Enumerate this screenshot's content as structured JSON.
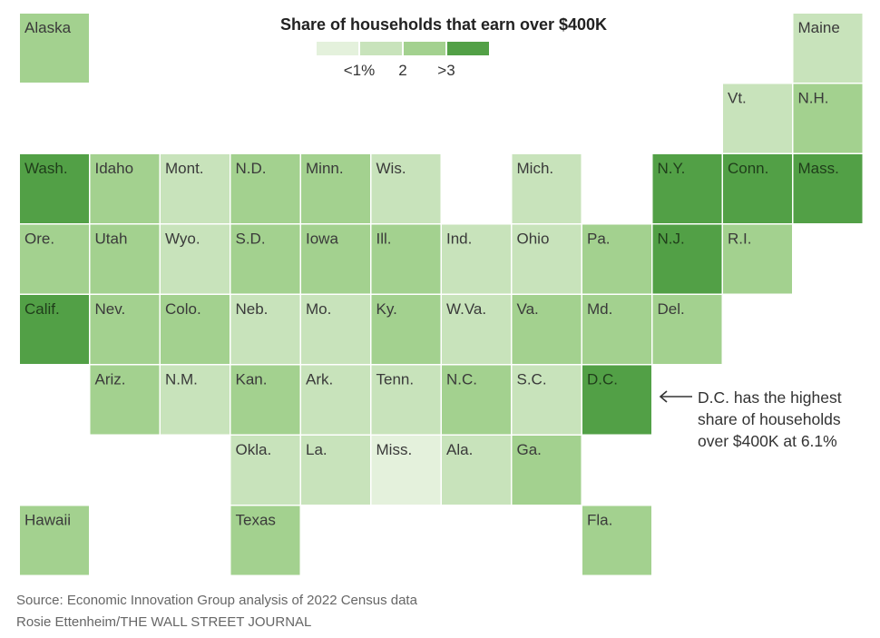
{
  "chart_data": {
    "type": "tile-grid-map",
    "title": "Share of households that earn over $400K",
    "legend": {
      "bins": [
        {
          "color": "#e4f1dc"
        },
        {
          "color": "#c8e3bb"
        },
        {
          "color": "#a3d18f"
        },
        {
          "color": "#52a046"
        }
      ],
      "ticks": [
        "<1%",
        "2",
        ">3"
      ]
    },
    "tiles": [
      {
        "state": "Alaska",
        "col": 0,
        "row": 0,
        "bin": 2
      },
      {
        "state": "Maine",
        "col": 11,
        "row": 0,
        "bin": 1
      },
      {
        "state": "Vt.",
        "col": 10,
        "row": 1,
        "bin": 1
      },
      {
        "state": "N.H.",
        "col": 11,
        "row": 1,
        "bin": 2
      },
      {
        "state": "Wash.",
        "col": 0,
        "row": 2,
        "bin": 3
      },
      {
        "state": "Idaho",
        "col": 1,
        "row": 2,
        "bin": 2
      },
      {
        "state": "Mont.",
        "col": 2,
        "row": 2,
        "bin": 1
      },
      {
        "state": "N.D.",
        "col": 3,
        "row": 2,
        "bin": 2
      },
      {
        "state": "Minn.",
        "col": 4,
        "row": 2,
        "bin": 2
      },
      {
        "state": "Wis.",
        "col": 5,
        "row": 2,
        "bin": 1
      },
      {
        "state": "Mich.",
        "col": 7,
        "row": 2,
        "bin": 1
      },
      {
        "state": "N.Y.",
        "col": 9,
        "row": 2,
        "bin": 3
      },
      {
        "state": "Conn.",
        "col": 10,
        "row": 2,
        "bin": 3
      },
      {
        "state": "Mass.",
        "col": 11,
        "row": 2,
        "bin": 3
      },
      {
        "state": "Ore.",
        "col": 0,
        "row": 3,
        "bin": 2
      },
      {
        "state": "Utah",
        "col": 1,
        "row": 3,
        "bin": 2
      },
      {
        "state": "Wyo.",
        "col": 2,
        "row": 3,
        "bin": 1
      },
      {
        "state": "S.D.",
        "col": 3,
        "row": 3,
        "bin": 2
      },
      {
        "state": "Iowa",
        "col": 4,
        "row": 3,
        "bin": 2
      },
      {
        "state": "Ill.",
        "col": 5,
        "row": 3,
        "bin": 2
      },
      {
        "state": "Ind.",
        "col": 6,
        "row": 3,
        "bin": 1
      },
      {
        "state": "Ohio",
        "col": 7,
        "row": 3,
        "bin": 1
      },
      {
        "state": "Pa.",
        "col": 8,
        "row": 3,
        "bin": 2
      },
      {
        "state": "N.J.",
        "col": 9,
        "row": 3,
        "bin": 3
      },
      {
        "state": "R.I.",
        "col": 10,
        "row": 3,
        "bin": 2
      },
      {
        "state": "Calif.",
        "col": 0,
        "row": 4,
        "bin": 3
      },
      {
        "state": "Nev.",
        "col": 1,
        "row": 4,
        "bin": 2
      },
      {
        "state": "Colo.",
        "col": 2,
        "row": 4,
        "bin": 2
      },
      {
        "state": "Neb.",
        "col": 3,
        "row": 4,
        "bin": 1
      },
      {
        "state": "Mo.",
        "col": 4,
        "row": 4,
        "bin": 1
      },
      {
        "state": "Ky.",
        "col": 5,
        "row": 4,
        "bin": 2
      },
      {
        "state": "W.Va.",
        "col": 6,
        "row": 4,
        "bin": 1
      },
      {
        "state": "Va.",
        "col": 7,
        "row": 4,
        "bin": 2
      },
      {
        "state": "Md.",
        "col": 8,
        "row": 4,
        "bin": 2
      },
      {
        "state": "Del.",
        "col": 9,
        "row": 4,
        "bin": 2
      },
      {
        "state": "Ariz.",
        "col": 1,
        "row": 5,
        "bin": 2
      },
      {
        "state": "N.M.",
        "col": 2,
        "row": 5,
        "bin": 1
      },
      {
        "state": "Kan.",
        "col": 3,
        "row": 5,
        "bin": 2
      },
      {
        "state": "Ark.",
        "col": 4,
        "row": 5,
        "bin": 1
      },
      {
        "state": "Tenn.",
        "col": 5,
        "row": 5,
        "bin": 1
      },
      {
        "state": "N.C.",
        "col": 6,
        "row": 5,
        "bin": 2
      },
      {
        "state": "S.C.",
        "col": 7,
        "row": 5,
        "bin": 1
      },
      {
        "state": "D.C.",
        "col": 8,
        "row": 5,
        "bin": 3
      },
      {
        "state": "Okla.",
        "col": 3,
        "row": 6,
        "bin": 1
      },
      {
        "state": "La.",
        "col": 4,
        "row": 6,
        "bin": 1
      },
      {
        "state": "Miss.",
        "col": 5,
        "row": 6,
        "bin": 0
      },
      {
        "state": "Ala.",
        "col": 6,
        "row": 6,
        "bin": 1
      },
      {
        "state": "Ga.",
        "col": 7,
        "row": 6,
        "bin": 2
      },
      {
        "state": "Hawaii",
        "col": 0,
        "row": 7,
        "bin": 2
      },
      {
        "state": "Texas",
        "col": 3,
        "row": 7,
        "bin": 2
      },
      {
        "state": "Fla.",
        "col": 8,
        "row": 7,
        "bin": 2
      }
    ],
    "annotation": {
      "lines": [
        "D.C. has the highest",
        "share of households",
        "over $400K at 6.1%"
      ]
    }
  },
  "footer": {
    "source": "Source: Economic Innovation Group analysis of 2022 Census data",
    "credit": "Rosie Ettenheim/THE WALL STREET JOURNAL"
  }
}
